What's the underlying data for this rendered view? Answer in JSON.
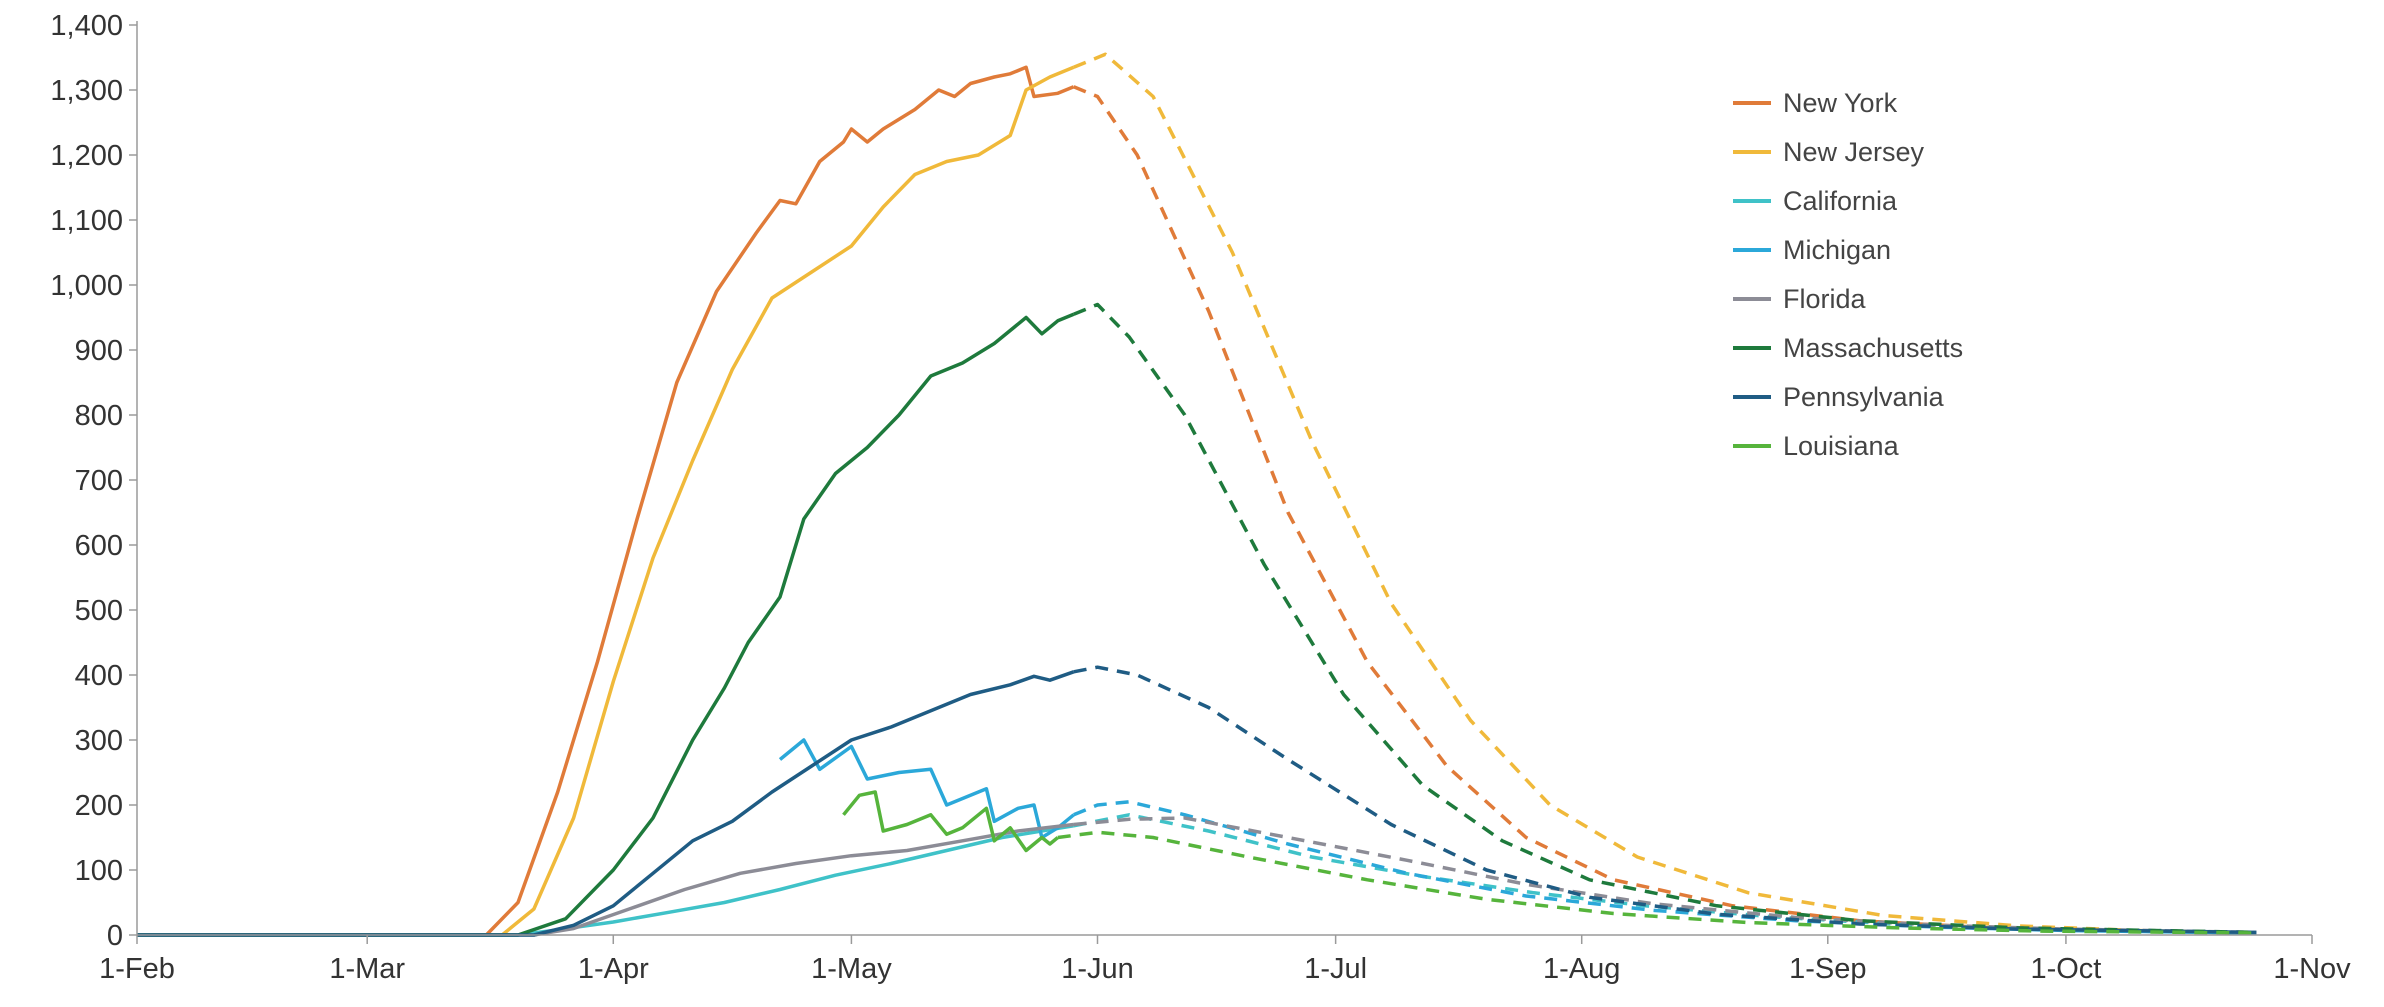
{
  "chart_data": {
    "type": "line",
    "title": "",
    "xlabel": "",
    "ylabel": "",
    "x_axis": {
      "type": "date",
      "ticks": [
        "1-Feb",
        "1-Mar",
        "1-Apr",
        "1-May",
        "1-Jun",
        "1-Jul",
        "1-Aug",
        "1-Sep",
        "1-Oct",
        "1-Nov"
      ],
      "tick_dates": [
        "2020-02-01",
        "2020-03-01",
        "2020-04-01",
        "2020-05-01",
        "2020-06-01",
        "2020-07-01",
        "2020-08-01",
        "2020-09-01",
        "2020-10-01",
        "2020-11-01"
      ],
      "range": [
        "2020-02-01",
        "2020-11-01"
      ]
    },
    "y_axis": {
      "ticks": [
        "0",
        "100",
        "200",
        "300",
        "400",
        "500",
        "600",
        "700",
        "800",
        "900",
        "1,000",
        "1,100",
        "1,200",
        "1,300",
        "1,400"
      ],
      "tick_values": [
        0,
        100,
        200,
        300,
        400,
        500,
        600,
        700,
        800,
        900,
        1000,
        1100,
        1200,
        1300,
        1400
      ],
      "range": [
        0,
        1400
      ]
    },
    "grid": false,
    "legend_position": "top-right",
    "series": [
      {
        "name": "New York",
        "color": "#e07b39",
        "actual": [
          [
            "2020-02-01",
            0
          ],
          [
            "2020-03-16",
            0
          ],
          [
            "2020-03-20",
            50
          ],
          [
            "2020-03-25",
            220
          ],
          [
            "2020-03-30",
            420
          ],
          [
            "2020-04-04",
            640
          ],
          [
            "2020-04-09",
            850
          ],
          [
            "2020-04-14",
            990
          ],
          [
            "2020-04-19",
            1080
          ],
          [
            "2020-04-22",
            1130
          ],
          [
            "2020-04-24",
            1125
          ],
          [
            "2020-04-27",
            1190
          ],
          [
            "2020-04-30",
            1220
          ],
          [
            "2020-05-01",
            1240
          ],
          [
            "2020-05-03",
            1220
          ],
          [
            "2020-05-05",
            1240
          ],
          [
            "2020-05-09",
            1270
          ],
          [
            "2020-05-12",
            1300
          ],
          [
            "2020-05-14",
            1290
          ],
          [
            "2020-05-16",
            1310
          ],
          [
            "2020-05-19",
            1320
          ],
          [
            "2020-05-21",
            1325
          ],
          [
            "2020-05-23",
            1335
          ],
          [
            "2020-05-24",
            1290
          ],
          [
            "2020-05-27",
            1295
          ],
          [
            "2020-05-29",
            1305
          ]
        ],
        "projected": [
          [
            "2020-05-29",
            1305
          ],
          [
            "2020-06-01",
            1290
          ],
          [
            "2020-06-06",
            1200
          ],
          [
            "2020-06-15",
            960
          ],
          [
            "2020-06-25",
            650
          ],
          [
            "2020-07-05",
            420
          ],
          [
            "2020-07-15",
            260
          ],
          [
            "2020-07-25",
            150
          ],
          [
            "2020-08-05",
            85
          ],
          [
            "2020-08-20",
            45
          ],
          [
            "2020-09-05",
            22
          ],
          [
            "2020-09-20",
            12
          ],
          [
            "2020-10-10",
            6
          ],
          [
            "2020-10-25",
            3
          ]
        ]
      },
      {
        "name": "New Jersey",
        "color": "#f0b93a",
        "actual": [
          [
            "2020-02-01",
            0
          ],
          [
            "2020-03-18",
            0
          ],
          [
            "2020-03-22",
            40
          ],
          [
            "2020-03-27",
            180
          ],
          [
            "2020-04-01",
            390
          ],
          [
            "2020-04-06",
            580
          ],
          [
            "2020-04-11",
            730
          ],
          [
            "2020-04-16",
            870
          ],
          [
            "2020-04-21",
            980
          ],
          [
            "2020-04-26",
            1020
          ],
          [
            "2020-05-01",
            1060
          ],
          [
            "2020-05-05",
            1120
          ],
          [
            "2020-05-09",
            1170
          ],
          [
            "2020-05-13",
            1190
          ],
          [
            "2020-05-17",
            1200
          ],
          [
            "2020-05-21",
            1230
          ],
          [
            "2020-05-23",
            1300
          ],
          [
            "2020-05-26",
            1320
          ],
          [
            "2020-05-29",
            1335
          ]
        ],
        "projected": [
          [
            "2020-05-29",
            1335
          ],
          [
            "2020-06-02",
            1355
          ],
          [
            "2020-06-08",
            1290
          ],
          [
            "2020-06-18",
            1050
          ],
          [
            "2020-06-28",
            760
          ],
          [
            "2020-07-08",
            510
          ],
          [
            "2020-07-18",
            330
          ],
          [
            "2020-07-28",
            200
          ],
          [
            "2020-08-08",
            120
          ],
          [
            "2020-08-22",
            65
          ],
          [
            "2020-09-08",
            30
          ],
          [
            "2020-09-25",
            14
          ],
          [
            "2020-10-10",
            7
          ],
          [
            "2020-10-25",
            3
          ]
        ]
      },
      {
        "name": "California",
        "color": "#3fc2c8",
        "actual": [
          [
            "2020-02-01",
            0
          ],
          [
            "2020-03-20",
            0
          ],
          [
            "2020-03-25",
            8
          ],
          [
            "2020-04-01",
            20
          ],
          [
            "2020-04-08",
            35
          ],
          [
            "2020-04-15",
            50
          ],
          [
            "2020-04-22",
            70
          ],
          [
            "2020-04-29",
            92
          ],
          [
            "2020-05-06",
            110
          ],
          [
            "2020-05-13",
            130
          ],
          [
            "2020-05-20",
            150
          ],
          [
            "2020-05-29",
            168
          ]
        ],
        "projected": [
          [
            "2020-05-29",
            168
          ],
          [
            "2020-06-05",
            185
          ],
          [
            "2020-06-15",
            160
          ],
          [
            "2020-06-28",
            120
          ],
          [
            "2020-07-12",
            90
          ],
          [
            "2020-07-26",
            65
          ],
          [
            "2020-08-09",
            45
          ],
          [
            "2020-08-25",
            28
          ],
          [
            "2020-09-12",
            15
          ],
          [
            "2020-09-30",
            8
          ],
          [
            "2020-10-25",
            3
          ]
        ]
      },
      {
        "name": "Michigan",
        "color": "#2ba8d9",
        "actual": [
          [
            "2020-04-22",
            270
          ],
          [
            "2020-04-25",
            300
          ],
          [
            "2020-04-27",
            255
          ],
          [
            "2020-05-01",
            290
          ],
          [
            "2020-05-03",
            240
          ],
          [
            "2020-05-07",
            250
          ],
          [
            "2020-05-11",
            255
          ],
          [
            "2020-05-13",
            200
          ],
          [
            "2020-05-16",
            215
          ],
          [
            "2020-05-18",
            225
          ],
          [
            "2020-05-19",
            175
          ],
          [
            "2020-05-22",
            195
          ],
          [
            "2020-05-24",
            200
          ],
          [
            "2020-05-25",
            150
          ],
          [
            "2020-05-27",
            165
          ],
          [
            "2020-05-29",
            185
          ]
        ],
        "projected": [
          [
            "2020-05-29",
            185
          ],
          [
            "2020-06-01",
            200
          ],
          [
            "2020-06-05",
            205
          ],
          [
            "2020-06-12",
            185
          ],
          [
            "2020-06-25",
            140
          ],
          [
            "2020-07-10",
            95
          ],
          [
            "2020-07-25",
            60
          ],
          [
            "2020-08-10",
            38
          ],
          [
            "2020-08-28",
            22
          ],
          [
            "2020-09-15",
            12
          ],
          [
            "2020-10-01",
            7
          ],
          [
            "2020-10-25",
            3
          ]
        ]
      },
      {
        "name": "Florida",
        "color": "#8c8c96",
        "actual": [
          [
            "2020-02-01",
            0
          ],
          [
            "2020-03-22",
            0
          ],
          [
            "2020-03-27",
            10
          ],
          [
            "2020-04-03",
            40
          ],
          [
            "2020-04-10",
            70
          ],
          [
            "2020-04-17",
            95
          ],
          [
            "2020-04-24",
            110
          ],
          [
            "2020-05-01",
            122
          ],
          [
            "2020-05-08",
            130
          ],
          [
            "2020-05-15",
            145
          ],
          [
            "2020-05-22",
            160
          ],
          [
            "2020-05-29",
            170
          ]
        ],
        "projected": [
          [
            "2020-05-29",
            170
          ],
          [
            "2020-06-05",
            178
          ],
          [
            "2020-06-12",
            180
          ],
          [
            "2020-06-25",
            150
          ],
          [
            "2020-07-10",
            115
          ],
          [
            "2020-07-25",
            78
          ],
          [
            "2020-08-10",
            48
          ],
          [
            "2020-08-28",
            27
          ],
          [
            "2020-09-15",
            15
          ],
          [
            "2020-10-01",
            9
          ],
          [
            "2020-10-25",
            4
          ]
        ]
      },
      {
        "name": "Massachusetts",
        "color": "#1e7a3c",
        "actual": [
          [
            "2020-02-01",
            0
          ],
          [
            "2020-03-20",
            0
          ],
          [
            "2020-03-26",
            25
          ],
          [
            "2020-04-01",
            100
          ],
          [
            "2020-04-06",
            180
          ],
          [
            "2020-04-11",
            300
          ],
          [
            "2020-04-15",
            380
          ],
          [
            "2020-04-18",
            450
          ],
          [
            "2020-04-22",
            520
          ],
          [
            "2020-04-25",
            640
          ],
          [
            "2020-04-29",
            710
          ],
          [
            "2020-05-03",
            750
          ],
          [
            "2020-05-07",
            800
          ],
          [
            "2020-05-11",
            860
          ],
          [
            "2020-05-15",
            880
          ],
          [
            "2020-05-19",
            910
          ],
          [
            "2020-05-23",
            950
          ],
          [
            "2020-05-25",
            925
          ],
          [
            "2020-05-27",
            945
          ],
          [
            "2020-05-29",
            955
          ]
        ],
        "projected": [
          [
            "2020-05-29",
            955
          ],
          [
            "2020-06-01",
            970
          ],
          [
            "2020-06-05",
            920
          ],
          [
            "2020-06-12",
            800
          ],
          [
            "2020-06-22",
            570
          ],
          [
            "2020-07-02",
            370
          ],
          [
            "2020-07-12",
            230
          ],
          [
            "2020-07-22",
            145
          ],
          [
            "2020-08-02",
            85
          ],
          [
            "2020-08-18",
            45
          ],
          [
            "2020-09-05",
            22
          ],
          [
            "2020-09-25",
            11
          ],
          [
            "2020-10-25",
            4
          ]
        ]
      },
      {
        "name": "Pennsylvania",
        "color": "#1f5c84",
        "actual": [
          [
            "2020-02-01",
            0
          ],
          [
            "2020-03-22",
            0
          ],
          [
            "2020-03-27",
            15
          ],
          [
            "2020-04-01",
            45
          ],
          [
            "2020-04-06",
            95
          ],
          [
            "2020-04-11",
            145
          ],
          [
            "2020-04-16",
            175
          ],
          [
            "2020-04-21",
            220
          ],
          [
            "2020-04-26",
            260
          ],
          [
            "2020-05-01",
            300
          ],
          [
            "2020-05-06",
            320
          ],
          [
            "2020-05-11",
            345
          ],
          [
            "2020-05-16",
            370
          ],
          [
            "2020-05-21",
            385
          ],
          [
            "2020-05-24",
            398
          ],
          [
            "2020-05-26",
            392
          ],
          [
            "2020-05-29",
            405
          ]
        ],
        "projected": [
          [
            "2020-05-29",
            405
          ],
          [
            "2020-06-01",
            412
          ],
          [
            "2020-06-06",
            400
          ],
          [
            "2020-06-15",
            350
          ],
          [
            "2020-06-25",
            270
          ],
          [
            "2020-07-08",
            170
          ],
          [
            "2020-07-20",
            100
          ],
          [
            "2020-08-02",
            58
          ],
          [
            "2020-08-18",
            32
          ],
          [
            "2020-09-05",
            17
          ],
          [
            "2020-09-25",
            9
          ],
          [
            "2020-10-25",
            4
          ]
        ]
      },
      {
        "name": "Louisiana",
        "color": "#56b43c",
        "actual": [
          [
            "2020-04-30",
            185
          ],
          [
            "2020-05-02",
            215
          ],
          [
            "2020-05-04",
            220
          ],
          [
            "2020-05-05",
            160
          ],
          [
            "2020-05-08",
            170
          ],
          [
            "2020-05-11",
            185
          ],
          [
            "2020-05-13",
            155
          ],
          [
            "2020-05-15",
            165
          ],
          [
            "2020-05-18",
            195
          ],
          [
            "2020-05-19",
            145
          ],
          [
            "2020-05-21",
            165
          ],
          [
            "2020-05-23",
            130
          ],
          [
            "2020-05-25",
            150
          ],
          [
            "2020-05-26",
            140
          ],
          [
            "2020-05-27",
            150
          ]
        ],
        "projected": [
          [
            "2020-05-27",
            150
          ],
          [
            "2020-06-01",
            158
          ],
          [
            "2020-06-08",
            150
          ],
          [
            "2020-06-20",
            120
          ],
          [
            "2020-07-05",
            85
          ],
          [
            "2020-07-20",
            55
          ],
          [
            "2020-08-05",
            33
          ],
          [
            "2020-08-22",
            19
          ],
          [
            "2020-09-10",
            11
          ],
          [
            "2020-09-28",
            6
          ],
          [
            "2020-10-25",
            3
          ]
        ]
      }
    ]
  }
}
